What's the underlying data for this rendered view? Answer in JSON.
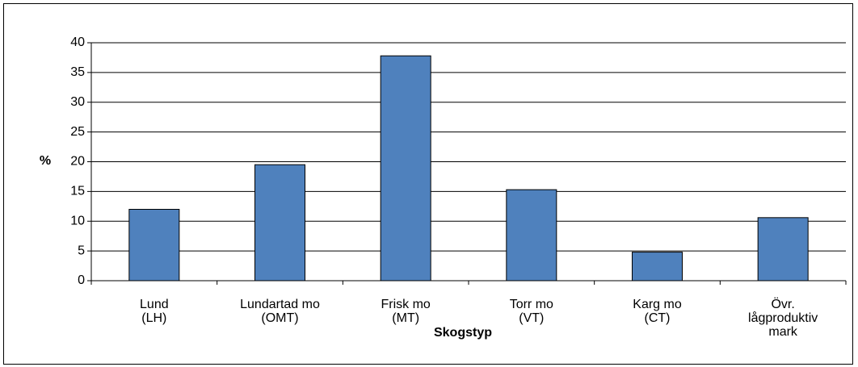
{
  "chart_data": {
    "type": "bar",
    "categories": [
      [
        "Lund",
        "(LH)"
      ],
      [
        "Lundartad mo",
        "(OMT)"
      ],
      [
        "Frisk mo",
        "(MT)"
      ],
      [
        "Torr mo",
        "(VT)"
      ],
      [
        "Karg mo",
        "(CT)"
      ],
      [
        "Övr.",
        "lågproduktiv",
        "mark"
      ]
    ],
    "values": [
      12,
      19.5,
      37.8,
      15.3,
      4.8,
      10.6
    ],
    "color": "#4f81bd",
    "ylim": [
      0,
      40
    ],
    "yticks": [
      0,
      5,
      10,
      15,
      20,
      25,
      30,
      35,
      40
    ],
    "grid": true,
    "y_label": "%",
    "x_label": "Skogstyp"
  }
}
